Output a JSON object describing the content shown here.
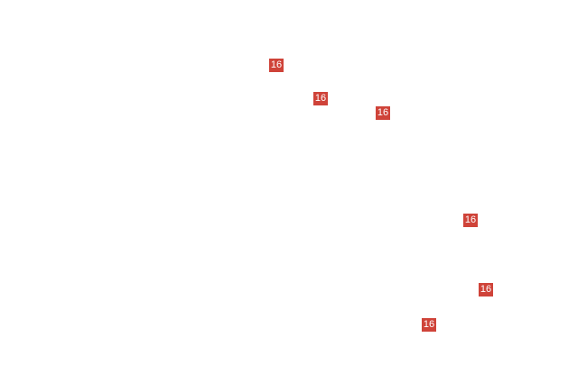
{
  "map": {
    "shield_color": "#cf4339",
    "route_shields": [
      {
        "label": "16"
      },
      {
        "label": "16"
      },
      {
        "label": "16"
      },
      {
        "label": "16"
      },
      {
        "label": "16"
      },
      {
        "label": "16"
      }
    ]
  }
}
